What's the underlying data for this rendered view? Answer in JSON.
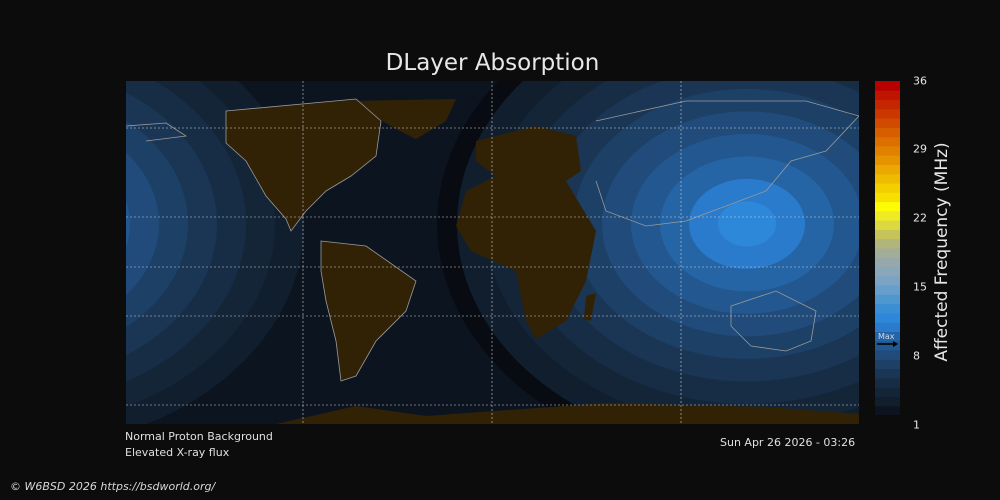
{
  "title": "DLayer Absorption",
  "colorbar": {
    "label": "Affected Frequency (MHz)",
    "ticks": [
      "36",
      "29",
      "22",
      "15",
      "8",
      "1"
    ],
    "min": 1,
    "max": 36,
    "max_marker_label": "Max",
    "max_marker_value": 9.5,
    "colors": [
      "#0d1420",
      "#111e2e",
      "#142538",
      "#172d45",
      "#1a3654",
      "#1d4066",
      "#204b7a",
      "#22578f",
      "#2565a6",
      "#2a7bcc",
      "#2e88da",
      "#3a8fd4",
      "#4f98cf",
      "#669ecc",
      "#7aa3c4",
      "#8aa7ba",
      "#96a8ac",
      "#a2ad98",
      "#b1b57a",
      "#c6c35a",
      "#dbd840",
      "#eeea25",
      "#fdfc05",
      "#f7e000",
      "#f3cf00",
      "#eebb00",
      "#eaa800",
      "#e59400",
      "#e08200",
      "#db7000",
      "#d65e00",
      "#d04b00",
      "#ca3800",
      "#c42600",
      "#be1400",
      "#b80000"
    ]
  },
  "map": {
    "background": "#0c1420",
    "land": "#312206",
    "coast": "#9a9a9a",
    "max_center_lon": 125,
    "max_center_lat": 15
  },
  "footer": {
    "line1": "Normal Proton Background",
    "line2": "Elevated X-ray flux",
    "timestamp": "Sun Apr 26 2026 - 03:26",
    "copyright": "© W6BSD 2026 https://bsdworld.org/"
  }
}
